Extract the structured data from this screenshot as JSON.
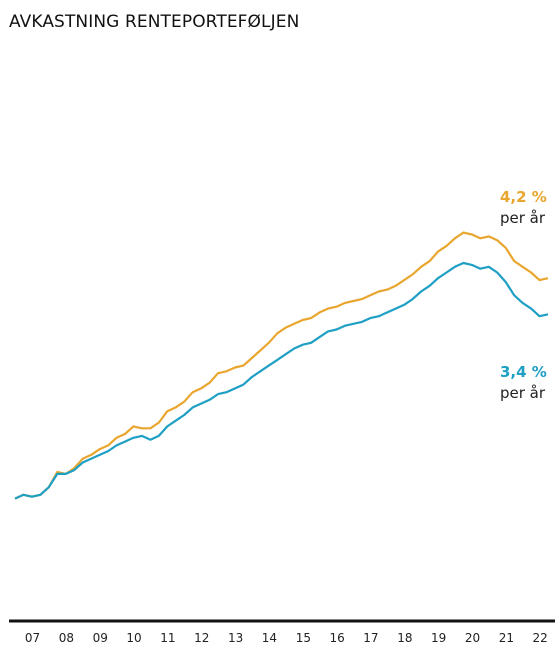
{
  "title": "AVKASTNING RENTEPORTEFØLJEN",
  "chart_data": {
    "type": "line",
    "title": "AVKASTNING RENTEPORTEFØLJEN",
    "xlabel": "",
    "ylabel": "",
    "x_tick_labels": [
      "07",
      "08",
      "09",
      "10",
      "11",
      "12",
      "13",
      "14",
      "15",
      "16",
      "17",
      "18",
      "19",
      "20",
      "21",
      "22"
    ],
    "xlim": [
      2006.5,
      2022.25
    ],
    "ylim": [
      0,
      10
    ],
    "grid": false,
    "legend": "none",
    "colors": {
      "orange": "#e9a62f",
      "blue": "#1e9fc4",
      "axis": "#111111"
    },
    "annotations": [
      {
        "series": 0,
        "value": "4,2 %",
        "note": "per år"
      },
      {
        "series": 1,
        "value": "3,4 %",
        "note": "per år"
      }
    ],
    "series": [
      {
        "color": "#e9a62f",
        "points": [
          [
            2006.5,
            0.3
          ],
          [
            2006.75,
            0.4
          ],
          [
            2007.0,
            0.35
          ],
          [
            2007.25,
            0.4
          ],
          [
            2007.5,
            0.6
          ],
          [
            2007.75,
            1.0
          ],
          [
            2008.0,
            0.95
          ],
          [
            2008.25,
            1.1
          ],
          [
            2008.5,
            1.35
          ],
          [
            2008.75,
            1.45
          ],
          [
            2009.0,
            1.6
          ],
          [
            2009.25,
            1.7
          ],
          [
            2009.5,
            1.9
          ],
          [
            2009.75,
            2.0
          ],
          [
            2010.0,
            2.2
          ],
          [
            2010.25,
            2.15
          ],
          [
            2010.5,
            2.15
          ],
          [
            2010.75,
            2.3
          ],
          [
            2011.0,
            2.6
          ],
          [
            2011.25,
            2.7
          ],
          [
            2011.5,
            2.85
          ],
          [
            2011.75,
            3.1
          ],
          [
            2012.0,
            3.2
          ],
          [
            2012.25,
            3.35
          ],
          [
            2012.5,
            3.6
          ],
          [
            2012.75,
            3.65
          ],
          [
            2013.0,
            3.75
          ],
          [
            2013.25,
            3.8
          ],
          [
            2013.5,
            4.0
          ],
          [
            2013.75,
            4.2
          ],
          [
            2014.0,
            4.4
          ],
          [
            2014.25,
            4.65
          ],
          [
            2014.5,
            4.8
          ],
          [
            2014.75,
            4.9
          ],
          [
            2015.0,
            5.0
          ],
          [
            2015.25,
            5.05
          ],
          [
            2015.5,
            5.2
          ],
          [
            2015.75,
            5.3
          ],
          [
            2016.0,
            5.35
          ],
          [
            2016.25,
            5.45
          ],
          [
            2016.5,
            5.5
          ],
          [
            2016.75,
            5.55
          ],
          [
            2017.0,
            5.65
          ],
          [
            2017.25,
            5.75
          ],
          [
            2017.5,
            5.8
          ],
          [
            2017.75,
            5.9
          ],
          [
            2018.0,
            6.05
          ],
          [
            2018.25,
            6.2
          ],
          [
            2018.5,
            6.4
          ],
          [
            2018.75,
            6.55
          ],
          [
            2019.0,
            6.8
          ],
          [
            2019.25,
            6.95
          ],
          [
            2019.5,
            7.15
          ],
          [
            2019.75,
            7.3
          ],
          [
            2020.0,
            7.25
          ],
          [
            2020.25,
            7.15
          ],
          [
            2020.5,
            7.2
          ],
          [
            2020.75,
            7.1
          ],
          [
            2021.0,
            6.9
          ],
          [
            2021.25,
            6.55
          ],
          [
            2021.5,
            6.4
          ],
          [
            2021.75,
            6.25
          ],
          [
            2022.0,
            6.05
          ],
          [
            2022.25,
            6.1
          ]
        ]
      },
      {
        "color": "#1e9fc4",
        "points": [
          [
            2006.5,
            0.3
          ],
          [
            2006.75,
            0.4
          ],
          [
            2007.0,
            0.35
          ],
          [
            2007.25,
            0.4
          ],
          [
            2007.5,
            0.6
          ],
          [
            2007.75,
            0.95
          ],
          [
            2008.0,
            0.95
          ],
          [
            2008.25,
            1.05
          ],
          [
            2008.5,
            1.25
          ],
          [
            2008.75,
            1.35
          ],
          [
            2009.0,
            1.45
          ],
          [
            2009.25,
            1.55
          ],
          [
            2009.5,
            1.7
          ],
          [
            2009.75,
            1.8
          ],
          [
            2010.0,
            1.9
          ],
          [
            2010.25,
            1.95
          ],
          [
            2010.5,
            1.85
          ],
          [
            2010.75,
            1.95
          ],
          [
            2011.0,
            2.2
          ],
          [
            2011.25,
            2.35
          ],
          [
            2011.5,
            2.5
          ],
          [
            2011.75,
            2.7
          ],
          [
            2012.0,
            2.8
          ],
          [
            2012.25,
            2.9
          ],
          [
            2012.5,
            3.05
          ],
          [
            2012.75,
            3.1
          ],
          [
            2013.0,
            3.2
          ],
          [
            2013.25,
            3.3
          ],
          [
            2013.5,
            3.5
          ],
          [
            2013.75,
            3.65
          ],
          [
            2014.0,
            3.8
          ],
          [
            2014.25,
            3.95
          ],
          [
            2014.5,
            4.1
          ],
          [
            2014.75,
            4.25
          ],
          [
            2015.0,
            4.35
          ],
          [
            2015.25,
            4.4
          ],
          [
            2015.5,
            4.55
          ],
          [
            2015.75,
            4.7
          ],
          [
            2016.0,
            4.75
          ],
          [
            2016.25,
            4.85
          ],
          [
            2016.5,
            4.9
          ],
          [
            2016.75,
            4.95
          ],
          [
            2017.0,
            5.05
          ],
          [
            2017.25,
            5.1
          ],
          [
            2017.5,
            5.2
          ],
          [
            2017.75,
            5.3
          ],
          [
            2018.0,
            5.4
          ],
          [
            2018.25,
            5.55
          ],
          [
            2018.5,
            5.75
          ],
          [
            2018.75,
            5.9
          ],
          [
            2019.0,
            6.1
          ],
          [
            2019.25,
            6.25
          ],
          [
            2019.5,
            6.4
          ],
          [
            2019.75,
            6.5
          ],
          [
            2020.0,
            6.45
          ],
          [
            2020.25,
            6.35
          ],
          [
            2020.5,
            6.4
          ],
          [
            2020.75,
            6.25
          ],
          [
            2021.0,
            6.0
          ],
          [
            2021.25,
            5.65
          ],
          [
            2021.5,
            5.45
          ],
          [
            2021.75,
            5.3
          ],
          [
            2022.0,
            5.1
          ],
          [
            2022.25,
            5.15
          ]
        ]
      }
    ]
  }
}
